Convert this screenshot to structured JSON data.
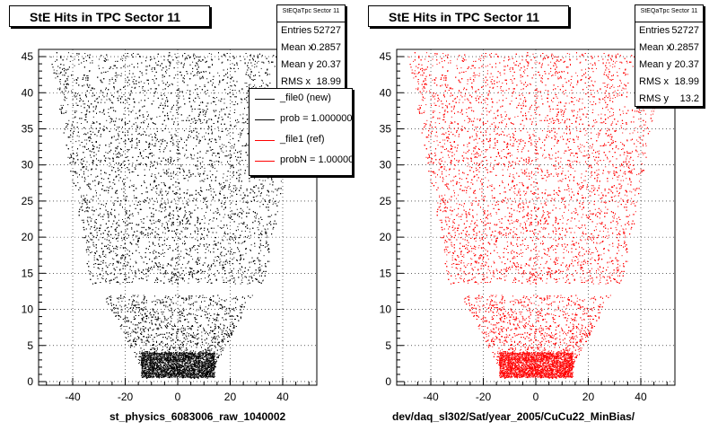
{
  "chart_data": [
    {
      "type": "scatter",
      "title": "StE Hits in TPC Sector 11",
      "xlabel": "st_physics_6083006_raw_1040002",
      "ylabel": "",
      "xlim": [
        -53,
        53
      ],
      "ylim": [
        -0.5,
        46
      ],
      "xticks": [
        -40,
        -20,
        0,
        20,
        40
      ],
      "yticks": [
        0,
        5,
        10,
        15,
        20,
        25,
        30,
        35,
        40,
        45
      ],
      "marker_color": "#000000",
      "stats": {
        "name": "StEQaTpc Sector 11",
        "rows": [
          {
            "label": "Entries",
            "value": "52727"
          },
          {
            "label": "Mean x",
            "value": "0.2857"
          },
          {
            "label": "Mean y",
            "value": "20.37"
          },
          {
            "label": "RMS x",
            "value": "18.99"
          }
        ]
      },
      "legend": [
        {
          "label": "_file0 (new)",
          "color": "#000000"
        },
        {
          "label": "prob = 1.000000",
          "color": "#000000"
        },
        {
          "label": "_file1 (ref)",
          "color": "#ff0000"
        },
        {
          "label": "probN = 1.000000",
          "color": "#ff0000"
        }
      ]
    },
    {
      "type": "scatter",
      "title": "StE Hits in TPC Sector 11",
      "xlabel": "dev/daq_sl302/Sat/year_2005/CuCu22_MinBias/",
      "ylabel": "",
      "xlim": [
        -53,
        53
      ],
      "ylim": [
        -0.5,
        46
      ],
      "xticks": [
        -40,
        -20,
        0,
        20,
        40
      ],
      "yticks": [
        0,
        5,
        10,
        15,
        20,
        25,
        30,
        35,
        40,
        45
      ],
      "marker_color": "#ff0000",
      "stats": {
        "name": "StEQaTpc Sector 11",
        "rows": [
          {
            "label": "Entries",
            "value": "52727"
          },
          {
            "label": "Mean x",
            "value": "0.2857"
          },
          {
            "label": "Mean y",
            "value": "20.37"
          },
          {
            "label": "RMS x",
            "value": "18.99"
          },
          {
            "label": "RMS y",
            "value": "13.2"
          }
        ]
      }
    }
  ]
}
